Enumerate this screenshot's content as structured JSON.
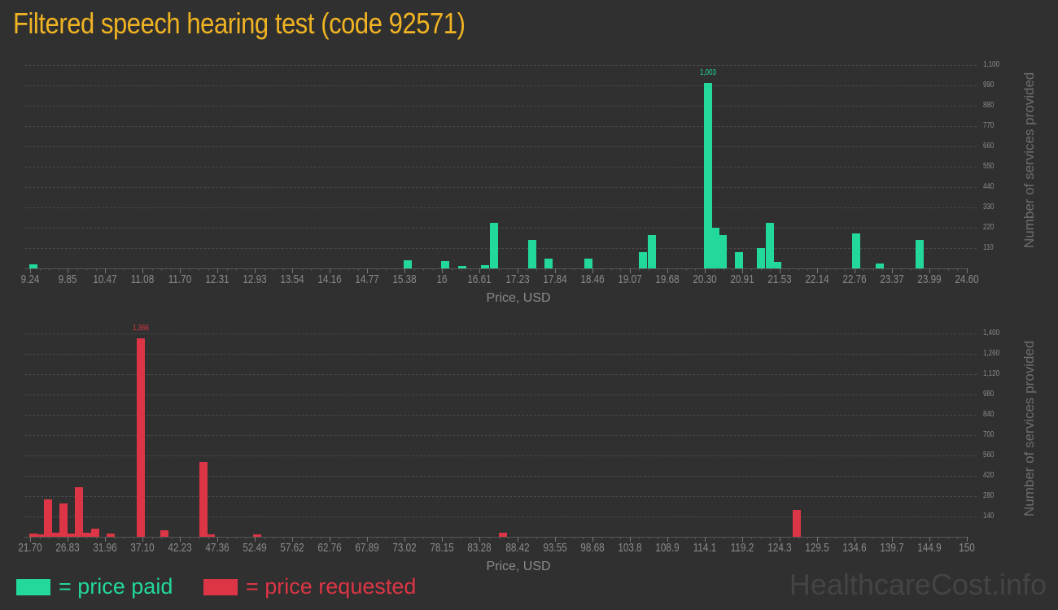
{
  "title": "Filtered speech hearing test (code 92571)",
  "colors": {
    "title": "#f0b323",
    "paid": "#22d89a",
    "requested": "#dc3545",
    "background": "#303030"
  },
  "legend": {
    "paid_label": "= price paid",
    "requested_label": "= price requested"
  },
  "watermark": "HealthcareCost.info",
  "chart_data": [
    {
      "type": "bar",
      "title": "Price paid",
      "xlabel": "Price, USD",
      "ylabel": "Number of services provided",
      "ylim": [
        0,
        1100
      ],
      "yticks": [
        "110",
        "220",
        "330",
        "440",
        "550",
        "660",
        "770",
        "880",
        "990",
        "1,100"
      ],
      "xticks": [
        "9.24",
        "9.85",
        "10.47",
        "11.08",
        "11.70",
        "12.31",
        "12.93",
        "13.54",
        "14.16",
        "14.77",
        "15.38",
        "16",
        "16.61",
        "17.23",
        "17.84",
        "18.46",
        "19.07",
        "19.68",
        "20.30",
        "20.91",
        "21.53",
        "22.14",
        "22.76",
        "23.37",
        "23.99",
        "24.60"
      ],
      "peak_label": "1,003",
      "grid": true,
      "x": [
        9.29,
        15.43,
        16.05,
        16.32,
        16.7,
        16.84,
        17.48,
        17.74,
        18.39,
        19.29,
        19.43,
        20.35,
        20.47,
        20.59,
        20.86,
        21.23,
        21.37,
        21.49,
        22.78,
        23.17,
        23.82
      ],
      "values": [
        22,
        44,
        40,
        13,
        18,
        246,
        154,
        53,
        53,
        88,
        180,
        1003,
        220,
        180,
        88,
        110,
        246,
        35,
        189,
        26,
        154
      ]
    },
    {
      "type": "bar",
      "title": "Price requested",
      "xlabel": "Price, USD",
      "ylabel": "Number of services provided",
      "ylim": [
        0,
        1400
      ],
      "yticks": [
        "140",
        "280",
        "420",
        "560",
        "700",
        "840",
        "980",
        "1,120",
        "1,260",
        "1,400"
      ],
      "xticks": [
        "21.70",
        "26.83",
        "31.96",
        "37.10",
        "42.23",
        "47.36",
        "52.49",
        "57.62",
        "62.76",
        "67.89",
        "73.02",
        "78.15",
        "83.28",
        "88.42",
        "93.55",
        "98.68",
        "103.8",
        "108.9",
        "114.1",
        "119.2",
        "124.3",
        "129.5",
        "134.6",
        "139.7",
        "144.9",
        "150"
      ],
      "peak_label": "1,366",
      "grid": true,
      "x": [
        22.1,
        23.2,
        24.2,
        25.3,
        26.3,
        27.4,
        28.4,
        29.5,
        30.6,
        32.7,
        36.9,
        40.1,
        45.4,
        46.4,
        52.8,
        86.5,
        126.7
      ],
      "values": [
        22,
        17,
        258,
        28,
        230,
        22,
        342,
        28,
        56,
        22,
        1366,
        45,
        515,
        17,
        17,
        28,
        185
      ]
    }
  ]
}
